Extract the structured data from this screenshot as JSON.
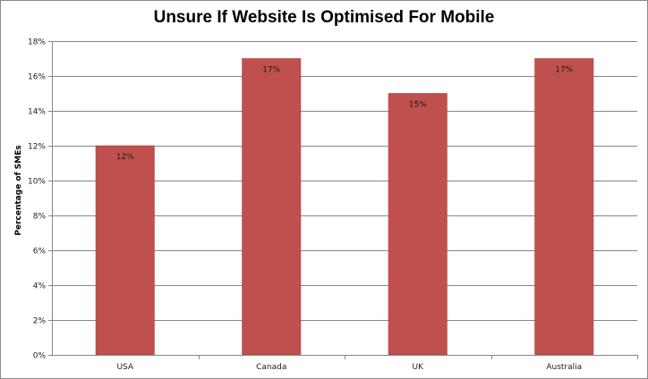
{
  "chart_data": {
    "type": "bar",
    "title": "Unsure If Website Is Optimised For Mobile",
    "xlabel": "",
    "ylabel": "Percentage of SMEs",
    "categories": [
      "USA",
      "Canada",
      "UK",
      "Australia"
    ],
    "values": [
      12,
      17,
      15,
      17
    ],
    "data_labels": [
      "12%",
      "17%",
      "15%",
      "17%"
    ],
    "ylim": [
      0,
      18
    ],
    "y_ticks": [
      0,
      2,
      4,
      6,
      8,
      10,
      12,
      14,
      16,
      18
    ],
    "y_tick_labels": [
      "0%",
      "2%",
      "4%",
      "6%",
      "8%",
      "10%",
      "12%",
      "14%",
      "16%",
      "18%"
    ],
    "grid": true,
    "legend": "none",
    "colors": {
      "bar": "#c0504d",
      "bar_edge": "#a84240",
      "grid": "#868686",
      "axis": "#868686"
    }
  }
}
